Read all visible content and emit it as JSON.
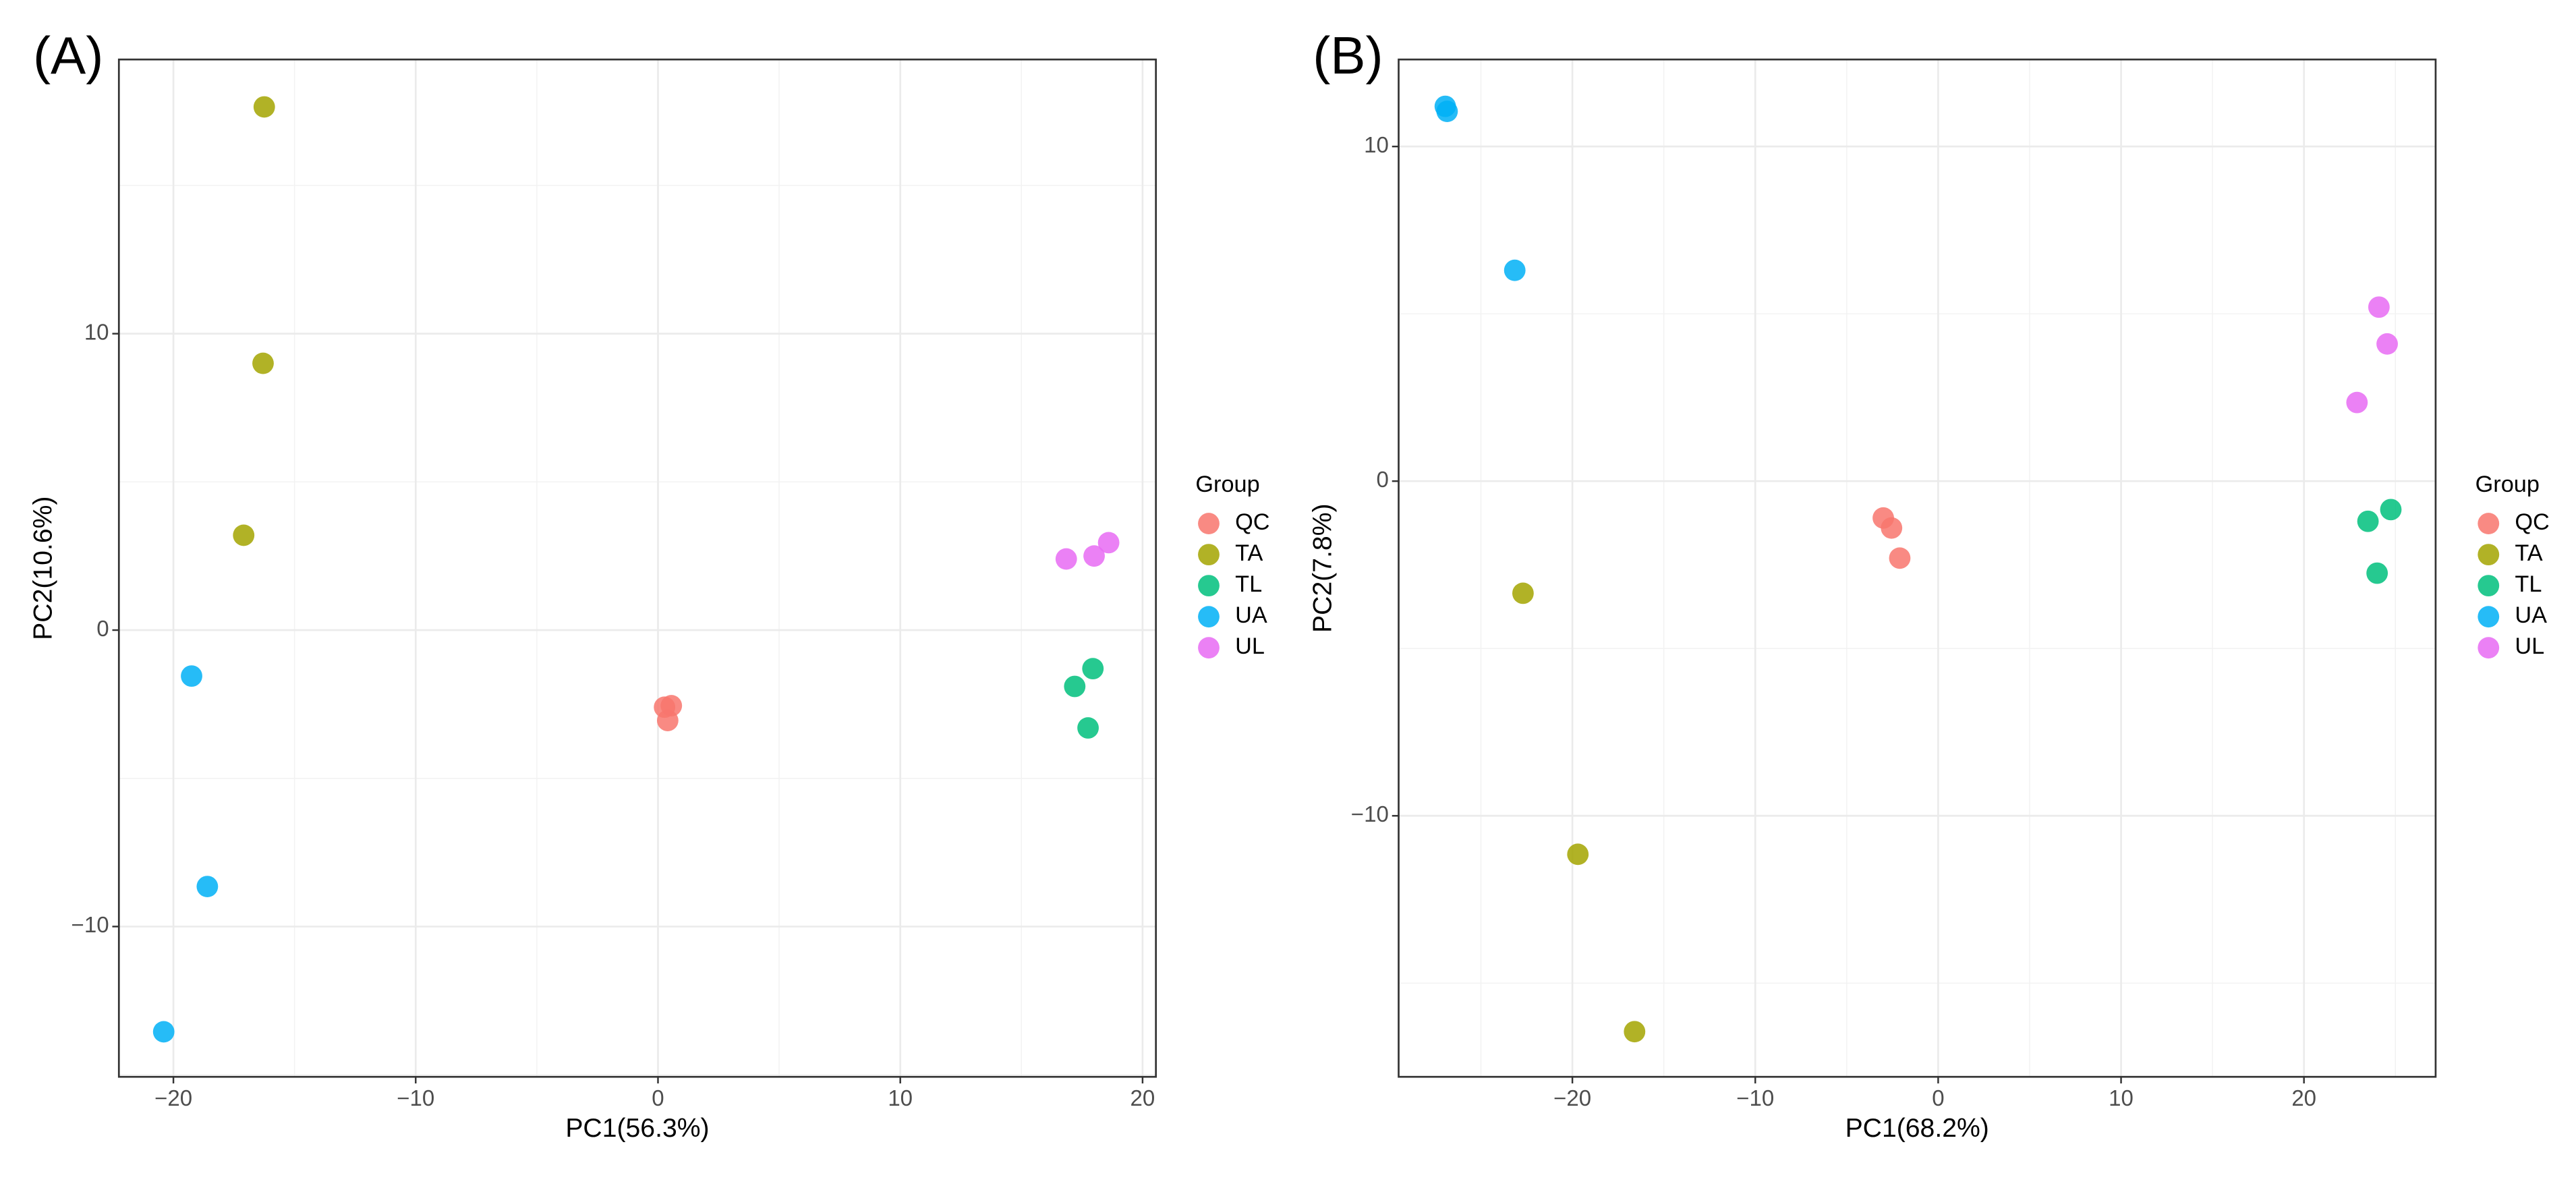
{
  "chart_data": [
    {
      "type": "scatter",
      "panel_label": "(A)",
      "xlabel": "PC1(56.3%)",
      "ylabel": "PC2(10.6%)",
      "legend_title": "Group",
      "xlim": [
        -22.25,
        20.55
      ],
      "ylim": [
        -15.07,
        19.25
      ],
      "xticks": [
        {
          "value": -20,
          "label": "−20"
        },
        {
          "value": -10,
          "label": "−10"
        },
        0,
        10,
        20
      ],
      "yticks": [
        {
          "value": -10,
          "label": "−10"
        },
        0,
        10
      ],
      "grid": true,
      "series": [
        {
          "name": "QC",
          "color": "#F8766D",
          "x": [
            0.27,
            0.55,
            0.4
          ],
          "values": [
            -2.6,
            -2.55,
            -3.05
          ]
        },
        {
          "name": "TA",
          "color": "#A3A500",
          "x": [
            -16.25,
            -16.3,
            -17.1
          ],
          "values": [
            17.65,
            9.0,
            3.2
          ]
        },
        {
          "name": "TL",
          "color": "#00BF7D",
          "x": [
            17.2,
            17.95,
            17.75
          ],
          "values": [
            -1.9,
            -1.3,
            -3.3
          ]
        },
        {
          "name": "UA",
          "color": "#00B0F6",
          "x": [
            -19.25,
            -18.6,
            -20.4
          ],
          "values": [
            -1.55,
            -8.65,
            -13.55
          ]
        },
        {
          "name": "UL",
          "color": "#E76BF3",
          "x": [
            16.85,
            18.0,
            18.6
          ],
          "values": [
            2.4,
            2.5,
            2.95
          ]
        }
      ]
    },
    {
      "type": "scatter",
      "panel_label": "(B)",
      "xlabel": "PC1(68.2%)",
      "ylabel": "PC2(7.8%)",
      "legend_title": "Group",
      "xlim": [
        -29.5,
        27.2
      ],
      "ylim": [
        -17.8,
        12.6
      ],
      "xticks": [
        {
          "value": -20,
          "label": "−20"
        },
        {
          "value": -10,
          "label": "−10"
        },
        0,
        10,
        20
      ],
      "yticks": [
        {
          "value": -10,
          "label": "−10"
        },
        0,
        10
      ],
      "grid": true,
      "series": [
        {
          "name": "QC",
          "color": "#F8766D",
          "x": [
            -3.0,
            -2.55,
            -2.1
          ],
          "values": [
            -1.1,
            -1.4,
            -2.3
          ]
        },
        {
          "name": "TA",
          "color": "#A3A500",
          "x": [
            -22.7,
            -19.7,
            -16.6
          ],
          "values": [
            -3.35,
            -11.15,
            -16.45
          ]
        },
        {
          "name": "TL",
          "color": "#00BF7D",
          "x": [
            23.5,
            24.75,
            24.0
          ],
          "values": [
            -1.2,
            -0.85,
            -2.75
          ]
        },
        {
          "name": "UA",
          "color": "#00B0F6",
          "x": [
            -26.95,
            -26.85,
            -23.15
          ],
          "values": [
            11.2,
            11.05,
            6.3
          ]
        },
        {
          "name": "UL",
          "color": "#E76BF3",
          "x": [
            24.1,
            24.55,
            22.9
          ],
          "values": [
            5.2,
            4.1,
            2.35
          ]
        }
      ]
    }
  ]
}
